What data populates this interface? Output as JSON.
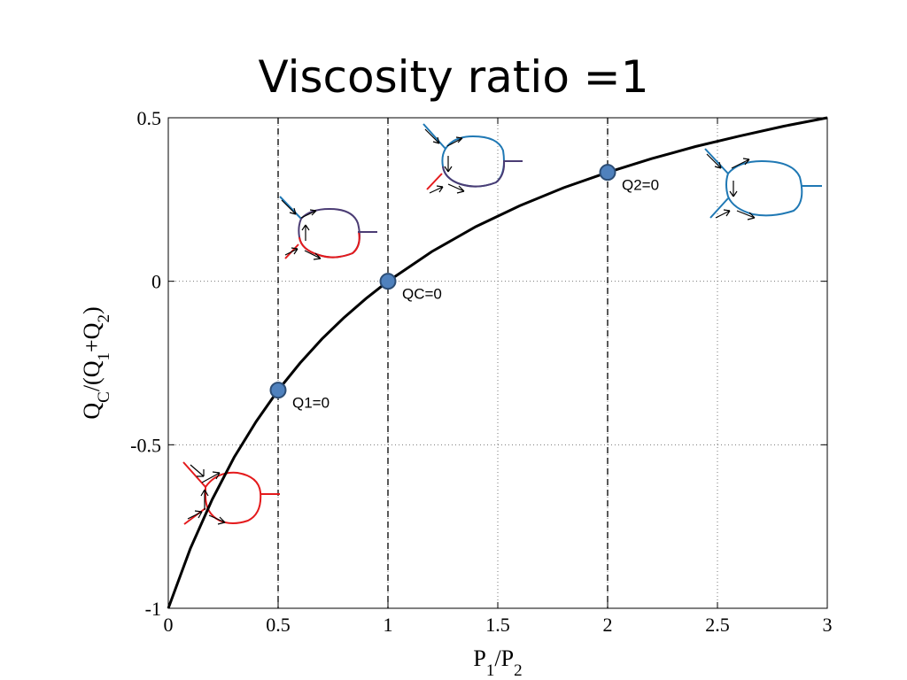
{
  "title": "Viscosity ratio =1",
  "chart_data": {
    "type": "line",
    "xlabel": "P1/P2",
    "ylabel": "QC/(Q1+Q2)",
    "xlim": [
      0,
      3
    ],
    "ylim": [
      -1,
      0.5
    ],
    "x_ticks": [
      "0",
      "0.5",
      "1",
      "1.5",
      "2",
      "2.5",
      "3"
    ],
    "y_ticks": [
      "-1",
      "-0.5",
      "0",
      "0.5"
    ],
    "grid": "dotted",
    "series": [
      {
        "x": [
          0,
          0.1,
          0.2,
          0.3,
          0.4,
          0.5,
          0.6,
          0.7,
          0.8,
          0.9,
          1.0,
          1.2,
          1.4,
          1.6,
          1.8,
          2.0,
          2.2,
          2.4,
          2.6,
          2.8,
          3.0
        ],
        "y": [
          -1.0,
          -0.818,
          -0.667,
          -0.538,
          -0.429,
          -0.333,
          -0.25,
          -0.176,
          -0.111,
          -0.053,
          0.0,
          0.091,
          0.167,
          0.231,
          0.286,
          0.333,
          0.375,
          0.412,
          0.444,
          0.474,
          0.5
        ]
      }
    ],
    "vertical_lines_x": [
      0.5,
      1,
      2
    ],
    "points": [
      {
        "x": 0.5,
        "y": -0.333,
        "label": "Q1=0"
      },
      {
        "x": 1,
        "y": 0,
        "label": "QC=0"
      },
      {
        "x": 2,
        "y": 0.333,
        "label": "Q2=0"
      }
    ],
    "colors": {
      "curve": "#000000",
      "marker_fill": "#4f81bd",
      "marker_stroke": "#2c4d75",
      "red": "#e41a1c",
      "blue": "#1f78b4",
      "purple": "#4b3c74"
    }
  }
}
